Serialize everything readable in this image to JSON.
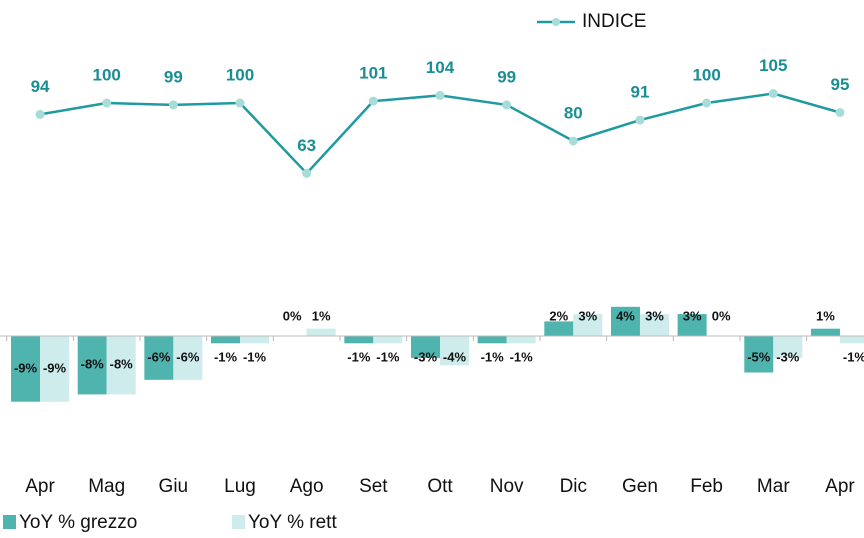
{
  "chart_data": {
    "type": "combo",
    "categories": [
      "Apr",
      "Mag",
      "Giu",
      "Lug",
      "Ago",
      "Set",
      "Ott",
      "Nov",
      "Dic",
      "Gen",
      "Feb",
      "Mar",
      "Apr"
    ],
    "series": [
      {
        "name": "INDICE",
        "type": "line",
        "color": "#1e9aa0",
        "marker_color": "#a8dcd9",
        "label_color": "#1a8e95",
        "values": [
          94,
          100,
          99,
          100,
          63,
          101,
          104,
          99,
          80,
          91,
          100,
          105,
          95
        ]
      },
      {
        "name": "YoY % grezzo",
        "type": "bar",
        "axis": "y2",
        "color": "#4fb4ad",
        "values": [
          -9,
          -8,
          -6,
          -1,
          0,
          -1,
          -3,
          -1,
          2,
          4,
          3,
          -5,
          1
        ],
        "value_labels": [
          "-9%",
          "-8%",
          "-6%",
          "-1%",
          "0%",
          "-1%",
          "-3%",
          "-1%",
          "2%",
          "4%",
          "3%",
          "-5%",
          "1%"
        ]
      },
      {
        "name": "YoY % rett",
        "type": "bar",
        "axis": "y2",
        "color": "#cdeceb",
        "values": [
          -9,
          -8,
          -6,
          -1,
          1,
          -1,
          -4,
          -1,
          3,
          3,
          0,
          -3,
          -1
        ],
        "value_labels": [
          "-9%",
          "-8%",
          "-6%",
          "-1%",
          "1%",
          "-1%",
          "-4%",
          "-1%",
          "3%",
          "3%",
          "0%",
          "-3%",
          "-1%"
        ]
      }
    ],
    "ylim": [
      40,
      115
    ],
    "y2lim": [
      -20,
      10
    ],
    "legend": "top"
  }
}
